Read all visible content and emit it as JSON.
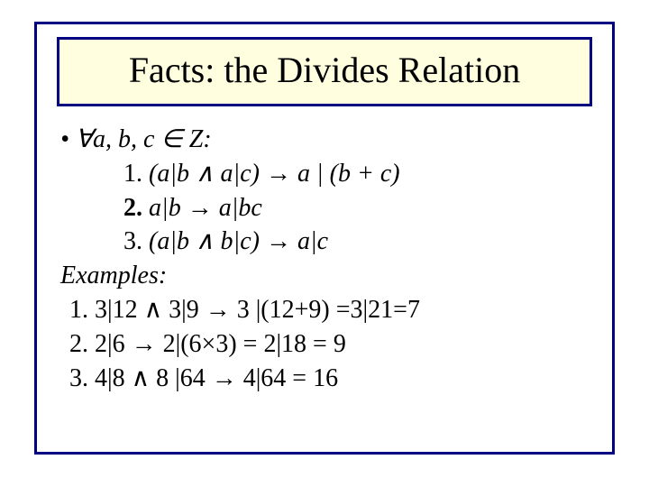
{
  "colors": {
    "border": "#000080",
    "title_bg": "#ffffe0",
    "slide_bg": "#ffffff",
    "text": "#000000"
  },
  "title": "Facts: the Divides Relation",
  "quantifier": "• ∀a, b, c ∈ Z:",
  "facts": {
    "f1_num": "1. ",
    "f1": "(a|b ∧ a|c) → a | (b + c)",
    "f2_num": "2. ",
    "f2": "a|b → a|bc",
    "f3_num": "3. ",
    "f3": "(a|b ∧ b|c) → a|c"
  },
  "examples_label": "Examples:",
  "examples": {
    "e1": "1. 3|12 ∧ 3|9 →  3 |(12+9) =3|21=7",
    "e2": "2. 2|6   → 2|(6×3) = 2|18 = 9",
    "e3": "3. 4|8 ∧ 8 |64 →  4|64 = 16"
  }
}
